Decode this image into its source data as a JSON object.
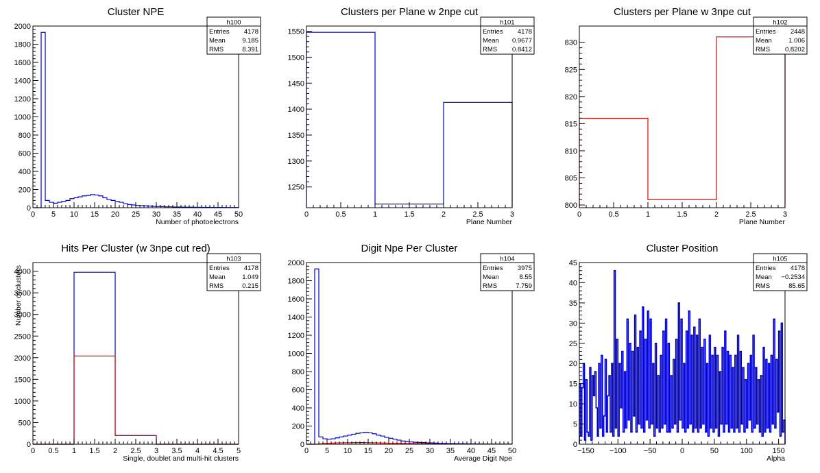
{
  "chart_data": [
    {
      "id": "h100",
      "type": "histogram",
      "title": "Cluster NPE",
      "xlabel": "Number of photoelectrons",
      "ylabel": "",
      "xlim": [
        0,
        50
      ],
      "ylim": [
        0,
        2000
      ],
      "xticks": [
        0,
        5,
        10,
        15,
        20,
        25,
        30,
        35,
        40,
        45,
        50
      ],
      "yticks": [
        0,
        200,
        400,
        600,
        800,
        1000,
        1200,
        1400,
        1600,
        1800,
        2000
      ],
      "stats": {
        "name": "h100",
        "Entries": "4178",
        "Mean": "9.185",
        "RMS": "8.391"
      },
      "series": [
        {
          "color": "#0000cc",
          "bins": {
            "start": 0,
            "width": 1,
            "values": [
              0,
              0,
              1930,
              80,
              60,
              50,
              60,
              70,
              80,
              100,
              110,
              120,
              130,
              135,
              145,
              140,
              130,
              110,
              90,
              80,
              70,
              60,
              45,
              35,
              30,
              25,
              22,
              20,
              18,
              15,
              14,
              12,
              10,
              10,
              8,
              8,
              7,
              6,
              6,
              5,
              5,
              4,
              4,
              3,
              3,
              3,
              2,
              2,
              2,
              2
            ]
          }
        }
      ]
    },
    {
      "id": "h101",
      "type": "histogram",
      "title": "Clusters per Plane w 2npe cut",
      "xlabel": "Plane Number",
      "ylabel": "",
      "xlim": [
        0,
        3
      ],
      "ylim": [
        1210,
        1560
      ],
      "xticks": [
        0,
        0.5,
        1,
        1.5,
        2,
        2.5,
        3
      ],
      "yticks": [
        1250,
        1300,
        1350,
        1400,
        1450,
        1500,
        1550
      ],
      "stats": {
        "name": "h101",
        "Entries": "4178",
        "Mean": "0.9677",
        "RMS": "0.8412"
      },
      "series": [
        {
          "color": "#0000cc",
          "bins": {
            "start": 0,
            "width": 1,
            "values": [
              1548,
              1217,
              1413
            ]
          }
        }
      ]
    },
    {
      "id": "h102",
      "type": "histogram",
      "title": "Clusters per Plane w 3npe cut",
      "xlabel": "Plane Number",
      "ylabel": "",
      "xlim": [
        0,
        3
      ],
      "ylim": [
        799.5,
        833
      ],
      "xticks": [
        0,
        0.5,
        1,
        1.5,
        2,
        2.5,
        3
      ],
      "yticks": [
        800,
        805,
        810,
        815,
        820,
        825,
        830
      ],
      "stats": {
        "name": "h102",
        "Entries": "2448",
        "Mean": "1.006",
        "RMS": "0.8202"
      },
      "series": [
        {
          "color": "#dd0000",
          "bins": {
            "start": 0,
            "width": 1,
            "values": [
              816,
              801,
              831
            ]
          }
        }
      ]
    },
    {
      "id": "h103",
      "type": "histogram",
      "title": "Hits Per Cluster (w 3npe cut red)",
      "xlabel": "Single, doublet and multi-hit clusters",
      "ylabel": "Number of clusters",
      "xlim": [
        0,
        5
      ],
      "ylim": [
        0,
        4200
      ],
      "xticks": [
        0,
        0.5,
        1,
        1.5,
        2,
        2.5,
        3,
        3.5,
        4,
        4.5,
        5
      ],
      "yticks": [
        0,
        500,
        1000,
        1500,
        2000,
        2500,
        3000,
        3500,
        4000
      ],
      "stats": {
        "name": "h103",
        "Entries": "4178",
        "Mean": "1.049",
        "RMS": "0.215"
      },
      "series": [
        {
          "color": "#0000cc",
          "bins": {
            "start": 0,
            "width": 1,
            "values": [
              0,
              3975,
              200,
              0,
              0
            ]
          }
        },
        {
          "color": "#dd0000",
          "bins": {
            "start": 0,
            "width": 1,
            "values": [
              0,
              2040,
              200,
              0,
              0
            ]
          }
        }
      ]
    },
    {
      "id": "h104",
      "type": "histogram",
      "title": "Digit Npe Per Cluster",
      "xlabel": "Average Digit Npe",
      "ylabel": "",
      "xlim": [
        0,
        50
      ],
      "ylim": [
        0,
        2000
      ],
      "xticks": [
        0,
        5,
        10,
        15,
        20,
        25,
        30,
        35,
        40,
        45,
        50
      ],
      "yticks": [
        0,
        200,
        400,
        600,
        800,
        1000,
        1200,
        1400,
        1600,
        1800,
        2000
      ],
      "stats": {
        "name": "h104",
        "Entries": "3975",
        "Mean": "8.55",
        "RMS": "7.759"
      },
      "series": [
        {
          "color": "#0000cc",
          "bins": {
            "start": 0,
            "width": 1,
            "values": [
              0,
              0,
              1930,
              80,
              60,
              55,
              60,
              70,
              80,
              90,
              100,
              110,
              120,
              125,
              130,
              125,
              115,
              100,
              90,
              75,
              65,
              55,
              45,
              35,
              30,
              25,
              22,
              20,
              18,
              15,
              14,
              12,
              10,
              10,
              8,
              8,
              7,
              6,
              6,
              5,
              5,
              4,
              4,
              3,
              3,
              3,
              2,
              2,
              2,
              2
            ]
          }
        },
        {
          "color": "#dd0000",
          "bins": {
            "start": 0,
            "width": 1,
            "values": [
              0,
              0,
              0,
              5,
              8,
              10,
              12,
              14,
              15,
              16,
              16,
              17,
              18,
              18,
              17,
              16,
              15,
              14,
              13,
              12,
              11,
              10,
              10,
              9,
              8,
              8,
              7,
              7,
              6,
              6,
              5,
              5,
              5,
              4,
              4,
              4,
              3,
              3,
              3,
              3,
              2,
              2,
              2,
              2,
              2,
              2,
              1,
              1,
              1,
              1
            ]
          }
        }
      ]
    },
    {
      "id": "h105",
      "type": "histogram",
      "title": "Cluster Position",
      "xlabel": "Alpha",
      "ylabel": "",
      "xlim": [
        -160,
        160
      ],
      "ylim": [
        0,
        45
      ],
      "xticks": [
        -150,
        -100,
        -50,
        0,
        50,
        100,
        150
      ],
      "yticks": [
        0,
        5,
        10,
        15,
        20,
        25,
        30,
        35,
        40,
        45
      ],
      "stats": {
        "name": "h105",
        "Entries": "4178",
        "Mean": "−0.2534",
        "RMS": "85.65"
      },
      "series": [
        {
          "color": "#0000cc",
          "bins": {
            "start": -160,
            "width": 2,
            "values": [
              15,
              2,
              14,
              20,
              1,
              16,
              3,
              2,
              19,
              1,
              17,
              12,
              18,
              9,
              2,
              20,
              4,
              22,
              2,
              7,
              21,
              3,
              12,
              17,
              3,
              20,
              2,
              43,
              4,
              26,
              2,
              20,
              9,
              23,
              3,
              18,
              4,
              31,
              6,
              25,
              3,
              23,
              7,
              32,
              3,
              24,
              5,
              28,
              4,
              34,
              3,
              26,
              6,
              33,
              4,
              31,
              5,
              20,
              2,
              25,
              4,
              17,
              3,
              22,
              4,
              28,
              5,
              31,
              3,
              25,
              3,
              17,
              4,
              21,
              5,
              26,
              3,
              35,
              6,
              31,
              4,
              20,
              3,
              28,
              4,
              33,
              5,
              27,
              3,
              29,
              4,
              27,
              3,
              31,
              4,
              24,
              5,
              26,
              3,
              20,
              2,
              27,
              4,
              22,
              3,
              24,
              4,
              22,
              2,
              18,
              5,
              24,
              3,
              28,
              5,
              23,
              3,
              22,
              4,
              19,
              3,
              22,
              4,
              27,
              3,
              23,
              5,
              19,
              3,
              16,
              4,
              20,
              6,
              22,
              3,
              27,
              4,
              19,
              5,
              16,
              3,
              17,
              2,
              24,
              3,
              21,
              4,
              20,
              3,
              22,
              5,
              31,
              4,
              21,
              8,
              28,
              2,
              30,
              3,
              6
            ]
          }
        }
      ]
    }
  ]
}
